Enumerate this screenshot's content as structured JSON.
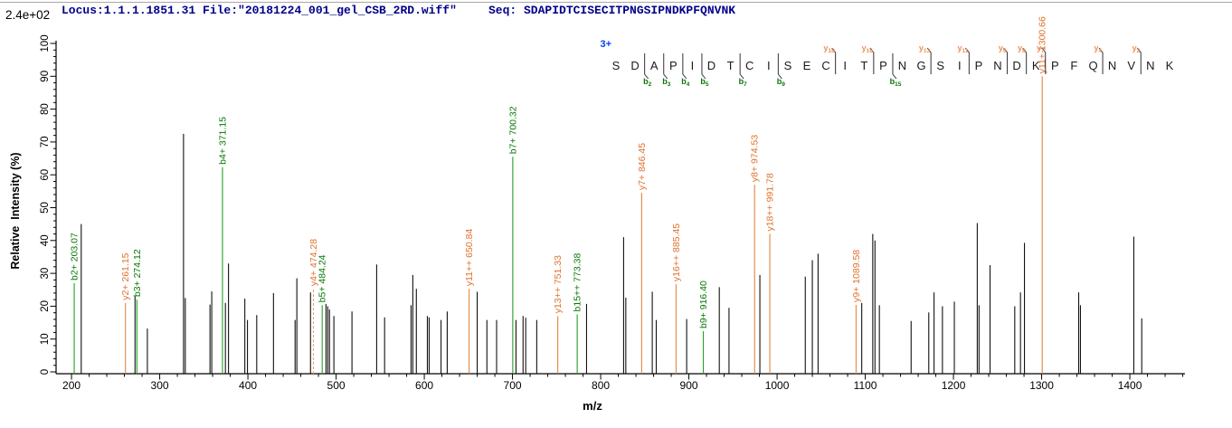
{
  "header": {
    "locus_file": "Locus:1.1.1.1851.31 File:\"20181224_001_gel_CSB_2RD.wiff\"",
    "seq_display": "Seq: SDAPIDTCISECITPNGSIPNDKPFQNVNK"
  },
  "colors": {
    "header_text": "#00008B",
    "charge_text": "#0041FF",
    "b_line": "#21A121",
    "b_label": "#077807",
    "y_line": "#E2863F",
    "y_label": "#E0722C",
    "y_seq_tag": "#EF9059",
    "y_dashed": "#F0A26E",
    "peak_black": "#111111",
    "axis": "#000000"
  },
  "chart_data": {
    "type": "bar",
    "subtype": "ms2-fragmentation-spectrum",
    "intensity_scale": "2.4e+02",
    "precursor_charge": "3+",
    "sequence": "SDAPIDTCISECITPNGSIPNDKPFQNVNK",
    "x_axis": {
      "label": "m/z",
      "min": 182.5,
      "max": 1462.5,
      "major_step": 100,
      "minor_step": 20,
      "tick_labels": [
        200,
        300,
        400,
        500,
        600,
        700,
        800,
        900,
        1000,
        1100,
        1200,
        1300,
        1400
      ]
    },
    "y_axis": {
      "label": "Relative  Intensity (%)",
      "min": 0,
      "max": 100,
      "major_step": 10,
      "minor_step": 2,
      "tick_labels": [
        0,
        10,
        20,
        30,
        40,
        50,
        60,
        70,
        80,
        90,
        100
      ]
    },
    "b_ion_cuts": [
      2,
      3,
      4,
      5,
      7,
      9,
      15
    ],
    "y_ion_cuts": [
      18,
      16,
      13,
      11,
      9,
      8,
      7,
      4,
      2
    ],
    "labeled_peaks": [
      {
        "label": "b2+ 203.07",
        "mz": 203.07,
        "intensity": 27.0,
        "series": "b",
        "dashed": false
      },
      {
        "label": "y2+ 261.15",
        "mz": 261.15,
        "intensity": 21.0,
        "series": "y",
        "dashed": false
      },
      {
        "label": "b3+ 274.12",
        "mz": 274.12,
        "intensity": 22.0,
        "series": "b",
        "dashed": false
      },
      {
        "label": "b4+ 371.15",
        "mz": 371.15,
        "intensity": 62.3,
        "series": "b",
        "dashed": false
      },
      {
        "label": "y4+ 474.28",
        "mz": 474.28,
        "intensity": 25.3,
        "series": "y",
        "dashed": true
      },
      {
        "label": "b5+ 484.24",
        "mz": 484.24,
        "intensity": 20.3,
        "series": "b",
        "dashed": false
      },
      {
        "label": "y11++ 650.84",
        "mz": 650.84,
        "intensity": 25.3,
        "series": "y",
        "dashed": false
      },
      {
        "label": "b7+ 700.32",
        "mz": 700.32,
        "intensity": 65.5,
        "series": "b",
        "dashed": false
      },
      {
        "label": "y13++ 751.33",
        "mz": 751.33,
        "intensity": 17.0,
        "series": "y",
        "dashed": false
      },
      {
        "label": "b15++ 773.38",
        "mz": 773.38,
        "intensity": 17.5,
        "series": "b",
        "dashed": false
      },
      {
        "label": "y7+ 846.45",
        "mz": 846.45,
        "intensity": 54.5,
        "series": "y",
        "dashed": false
      },
      {
        "label": "y16++ 885.45",
        "mz": 885.45,
        "intensity": 26.7,
        "series": "y",
        "dashed": false
      },
      {
        "label": "b9+ 916.40",
        "mz": 916.4,
        "intensity": 12.4,
        "series": "b",
        "dashed": false
      },
      {
        "label": "y8+ 974.53",
        "mz": 974.53,
        "intensity": 57.0,
        "series": "y",
        "dashed": false
      },
      {
        "label": "y18++ 991.78",
        "mz": 991.78,
        "intensity": 42.0,
        "series": "y",
        "dashed": false
      },
      {
        "label": "y9+ 1089.58",
        "mz": 1089.58,
        "intensity": 20.4,
        "series": "y",
        "dashed": false
      },
      {
        "label": "y11+ 1300.66",
        "mz": 1300.66,
        "intensity": 90.0,
        "series": "y",
        "dashed": false
      }
    ],
    "unlabeled_peaks": [
      [
        211,
        45.0
      ],
      [
        272,
        23.0
      ],
      [
        286,
        13.2
      ],
      [
        327,
        72.5
      ],
      [
        329,
        22.5
      ],
      [
        357,
        20.5
      ],
      [
        359,
        24.5
      ],
      [
        374.5,
        21.0
      ],
      [
        378,
        33.0
      ],
      [
        396.5,
        22.3
      ],
      [
        399.5,
        15.8
      ],
      [
        410,
        17.3
      ],
      [
        429,
        24.0
      ],
      [
        453.5,
        15.8
      ],
      [
        455.5,
        28.5
      ],
      [
        471,
        24.2
      ],
      [
        488.5,
        20.7
      ],
      [
        490.5,
        20.0
      ],
      [
        492.5,
        19.0
      ],
      [
        497.5,
        17.0
      ],
      [
        518,
        18.4
      ],
      [
        546,
        32.7
      ],
      [
        555,
        16.6
      ],
      [
        585,
        20.3
      ],
      [
        587,
        29.5
      ],
      [
        591,
        25.3
      ],
      [
        603.5,
        17.0
      ],
      [
        605.5,
        16.6
      ],
      [
        619,
        15.8
      ],
      [
        626,
        18.4
      ],
      [
        660,
        24.4
      ],
      [
        671,
        15.8
      ],
      [
        682,
        15.8
      ],
      [
        704,
        15.8
      ],
      [
        712,
        17.0
      ],
      [
        715,
        16.5
      ],
      [
        727.5,
        15.8
      ],
      [
        784,
        20.7
      ],
      [
        826,
        41.0
      ],
      [
        828.5,
        22.6
      ],
      [
        858.5,
        24.4
      ],
      [
        863,
        15.8
      ],
      [
        897.5,
        16.1
      ],
      [
        934.5,
        25.8
      ],
      [
        945.5,
        19.5
      ],
      [
        980.5,
        29.5
      ],
      [
        1032,
        29.0
      ],
      [
        1040,
        34.0
      ],
      [
        1046.5,
        36.0
      ],
      [
        1096,
        21.0
      ],
      [
        1108.5,
        42.0
      ],
      [
        1111,
        40.0
      ],
      [
        1116,
        20.3
      ],
      [
        1152,
        15.5
      ],
      [
        1172,
        18.1
      ],
      [
        1178,
        24.2
      ],
      [
        1187.5,
        20.0
      ],
      [
        1201,
        21.4
      ],
      [
        1227,
        45.3
      ],
      [
        1229,
        20.3
      ],
      [
        1241.5,
        32.5
      ],
      [
        1269.5,
        20.0
      ],
      [
        1276,
        24.2
      ],
      [
        1280.5,
        39.3
      ],
      [
        1342,
        24.2
      ],
      [
        1344,
        20.3
      ],
      [
        1404.5,
        41.2
      ],
      [
        1413.5,
        16.3
      ]
    ]
  }
}
